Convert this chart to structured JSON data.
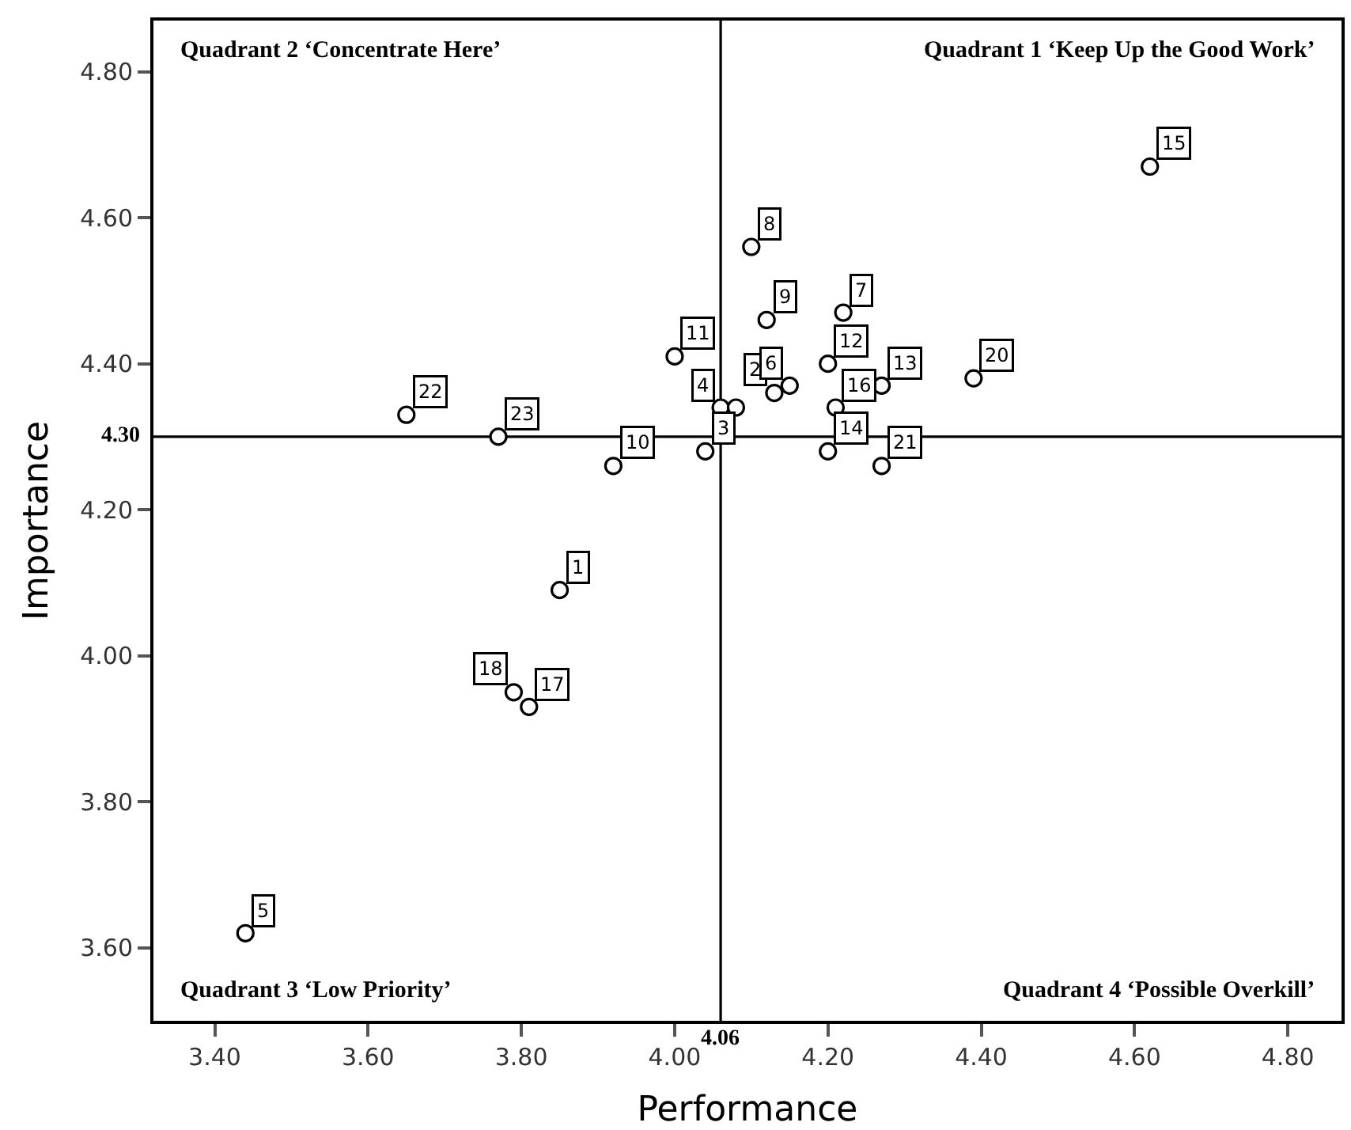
{
  "chart_data": {
    "type": "scatter",
    "xlabel": "Performance",
    "ylabel": "Importance",
    "x": [
      4.1,
      4.22,
      4.0,
      4.12,
      4.2,
      4.39,
      4.27,
      4.13,
      4.15,
      4.06,
      4.08,
      4.21,
      4.2,
      4.04,
      4.27,
      3.92,
      3.65,
      3.77,
      3.85,
      3.79,
      3.81,
      4.62,
      3.44
    ],
    "series": [
      {
        "color": "#000000",
        "values": [
          4.56,
          4.47,
          4.41,
          4.46,
          4.4,
          4.38,
          4.37,
          4.36,
          4.37,
          4.34,
          4.34,
          4.34,
          4.28,
          4.28,
          4.26,
          4.26,
          4.33,
          4.3,
          4.09,
          3.95,
          3.93,
          4.67,
          3.62
        ]
      }
    ],
    "marker": "circle",
    "xlim": [
      3.32,
      4.87
    ],
    "ylim": [
      3.5,
      4.87
    ],
    "xticks": [
      {
        "value": 3.4,
        "label": "3.40"
      },
      {
        "value": 3.6,
        "label": "3.60"
      },
      {
        "value": 3.8,
        "label": "3.80"
      },
      {
        "value": 4.0,
        "label": "4.00"
      },
      {
        "value": 4.2,
        "label": "4.20"
      },
      {
        "value": 4.4,
        "label": "4.40"
      },
      {
        "value": 4.6,
        "label": "4.60"
      },
      {
        "value": 4.8,
        "label": "4.80"
      }
    ],
    "yticks": [
      {
        "value": 3.6,
        "label": "3.60"
      },
      {
        "value": 3.8,
        "label": "3.80"
      },
      {
        "value": 4.0,
        "label": "4.00"
      },
      {
        "value": 4.2,
        "label": "4.20"
      },
      {
        "value": 4.4,
        "label": "4.40"
      },
      {
        "value": 4.6,
        "label": "4.60"
      },
      {
        "value": 4.8,
        "label": "4.80"
      }
    ],
    "ref_lines": [
      {
        "axis": "x",
        "value": 4.06,
        "label": "4.06",
        "color": "#000000"
      },
      {
        "axis": "y",
        "value": 4.3,
        "label": "4.30",
        "color": "#000000"
      }
    ],
    "annotations": [
      "Quadrant 2 ‘Concentrate Here’",
      "Quadrant 1 ‘Keep Up the Good Work’",
      "Quadrant 3 ‘Low Priority’",
      "Quadrant 4 ‘Possible Overkill’",
      {
        "text": "8",
        "x": 4.1,
        "y": 4.56
      },
      {
        "text": "7",
        "x": 4.22,
        "y": 4.47
      },
      {
        "text": "11",
        "x": 4.0,
        "y": 4.41
      },
      {
        "text": "9",
        "x": 4.12,
        "y": 4.46
      },
      {
        "text": "12",
        "x": 4.2,
        "y": 4.4
      },
      {
        "text": "20",
        "x": 4.39,
        "y": 4.38
      },
      {
        "text": "13",
        "x": 4.27,
        "y": 4.37
      },
      {
        "text": "2",
        "x": 4.13,
        "y": 4.36
      },
      {
        "text": "6",
        "x": 4.15,
        "y": 4.37
      },
      {
        "text": "4",
        "x": 4.06,
        "y": 4.34
      },
      {
        "text": "16",
        "x": 4.21,
        "y": 4.34
      },
      {
        "text": "14",
        "x": 4.2,
        "y": 4.28
      },
      {
        "text": "3",
        "x": 4.04,
        "y": 4.28
      },
      {
        "text": "21",
        "x": 4.27,
        "y": 4.26
      },
      {
        "text": "10",
        "x": 3.92,
        "y": 4.26
      },
      {
        "text": "22",
        "x": 3.65,
        "y": 4.33
      },
      {
        "text": "23",
        "x": 3.77,
        "y": 4.3
      },
      {
        "text": "1",
        "x": 3.85,
        "y": 4.09
      },
      {
        "text": "18",
        "x": 3.79,
        "y": 3.95
      },
      {
        "text": "17",
        "x": 3.81,
        "y": 3.93
      },
      {
        "text": "15",
        "x": 4.62,
        "y": 4.67
      },
      {
        "text": "5",
        "x": 3.44,
        "y": 3.62
      }
    ]
  }
}
